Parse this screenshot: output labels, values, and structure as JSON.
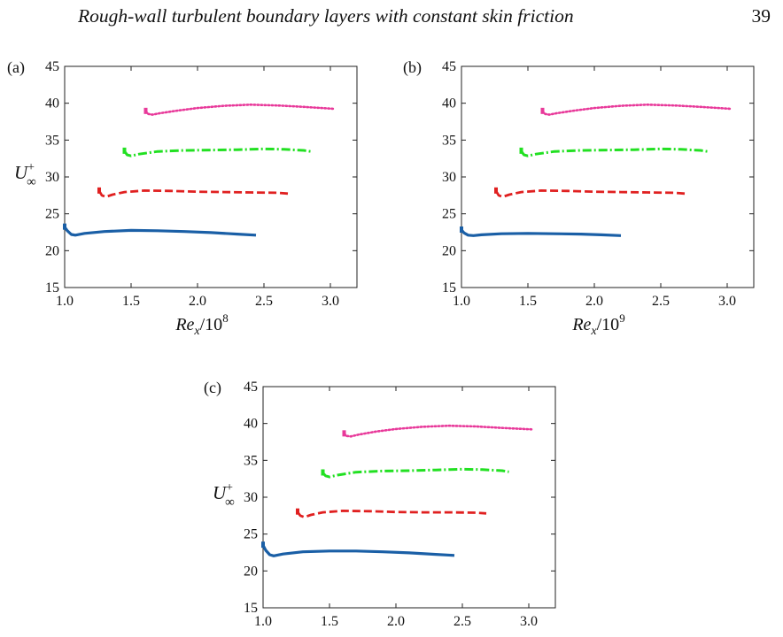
{
  "header": {
    "title": "Rough-wall turbulent boundary layers with constant skin friction",
    "page_number": "39"
  },
  "chart_data": [
    {
      "panel": "a",
      "panel_label": "(a)",
      "type": "line",
      "xlabel_main": "Re",
      "xlabel_sub": "x",
      "xlabel_div": "/10",
      "xlabel_exp": "8",
      "ylabel_main": "U",
      "ylabel_sup": "+",
      "ylabel_sub": "∞",
      "xlim": [
        1.0,
        3.2
      ],
      "ylim": [
        15,
        45
      ],
      "xticks": [
        1.0,
        1.5,
        2.0,
        2.5,
        3.0
      ],
      "xtick_labels": [
        "1.0",
        "1.5",
        "2.0",
        "2.5",
        "3.0"
      ],
      "yticks": [
        15,
        20,
        25,
        30,
        35,
        40,
        45
      ],
      "ytick_labels": [
        "15",
        "20",
        "25",
        "30",
        "35",
        "40",
        "45"
      ],
      "series": [
        {
          "style": "solid",
          "color": "#1a5fa6",
          "x": [
            1.0,
            1.02,
            1.05,
            1.08,
            1.15,
            1.3,
            1.5,
            1.7,
            1.9,
            2.1,
            2.3,
            2.44
          ],
          "y": [
            23.2,
            22.7,
            22.2,
            22.1,
            22.35,
            22.6,
            22.75,
            22.7,
            22.6,
            22.45,
            22.25,
            22.1
          ]
        },
        {
          "style": "dashed",
          "color": "#e02020",
          "x": [
            1.26,
            1.28,
            1.31,
            1.36,
            1.45,
            1.6,
            1.8,
            2.0,
            2.2,
            2.4,
            2.6,
            2.68
          ],
          "y": [
            28.1,
            27.5,
            27.3,
            27.6,
            27.95,
            28.15,
            28.1,
            28.0,
            27.95,
            27.9,
            27.85,
            27.75
          ]
        },
        {
          "style": "dashdot",
          "color": "#22e022",
          "x": [
            1.45,
            1.47,
            1.5,
            1.56,
            1.7,
            1.9,
            2.1,
            2.3,
            2.5,
            2.65,
            2.8,
            2.85
          ],
          "y": [
            33.5,
            33.0,
            32.85,
            33.1,
            33.45,
            33.6,
            33.65,
            33.7,
            33.8,
            33.75,
            33.6,
            33.45
          ]
        },
        {
          "style": "dotted",
          "color": "#e8399a",
          "x": [
            1.61,
            1.63,
            1.66,
            1.72,
            1.85,
            2.0,
            2.2,
            2.4,
            2.6,
            2.8,
            3.02
          ],
          "y": [
            38.9,
            38.55,
            38.45,
            38.65,
            39.0,
            39.35,
            39.65,
            39.8,
            39.7,
            39.5,
            39.25
          ]
        }
      ]
    },
    {
      "panel": "b",
      "panel_label": "(b)",
      "type": "line",
      "xlabel_main": "Re",
      "xlabel_sub": "x",
      "xlabel_div": "/10",
      "xlabel_exp": "9",
      "ylabel_main": "",
      "ylabel_sup": "",
      "ylabel_sub": "",
      "xlim": [
        1.0,
        3.2
      ],
      "ylim": [
        15,
        45
      ],
      "xticks": [
        1.0,
        1.5,
        2.0,
        2.5,
        3.0
      ],
      "xtick_labels": [
        "1.0",
        "1.5",
        "2.0",
        "2.5",
        "3.0"
      ],
      "yticks": [
        15,
        20,
        25,
        30,
        35,
        40,
        45
      ],
      "ytick_labels": [
        "15",
        "20",
        "25",
        "30",
        "35",
        "40",
        "45"
      ],
      "series": [
        {
          "style": "solid",
          "color": "#1a5fa6",
          "x": [
            1.0,
            1.02,
            1.05,
            1.09,
            1.15,
            1.3,
            1.5,
            1.7,
            1.9,
            2.05,
            2.2
          ],
          "y": [
            22.8,
            22.4,
            22.1,
            22.05,
            22.15,
            22.3,
            22.35,
            22.3,
            22.25,
            22.15,
            22.05
          ]
        },
        {
          "style": "dashed",
          "color": "#e02020",
          "x": [
            1.26,
            1.28,
            1.31,
            1.36,
            1.45,
            1.6,
            1.8,
            2.0,
            2.2,
            2.4,
            2.6,
            2.68
          ],
          "y": [
            28.1,
            27.5,
            27.3,
            27.6,
            27.95,
            28.15,
            28.1,
            28.0,
            27.95,
            27.9,
            27.85,
            27.75
          ]
        },
        {
          "style": "dashdot",
          "color": "#22e022",
          "x": [
            1.45,
            1.47,
            1.5,
            1.56,
            1.7,
            1.9,
            2.1,
            2.3,
            2.5,
            2.65,
            2.8,
            2.85
          ],
          "y": [
            33.5,
            33.0,
            32.85,
            33.1,
            33.45,
            33.6,
            33.65,
            33.7,
            33.8,
            33.75,
            33.6,
            33.45
          ]
        },
        {
          "style": "dotted",
          "color": "#e8399a",
          "x": [
            1.61,
            1.63,
            1.66,
            1.72,
            1.85,
            2.0,
            2.2,
            2.4,
            2.6,
            2.8,
            3.02
          ],
          "y": [
            38.9,
            38.55,
            38.45,
            38.65,
            39.0,
            39.35,
            39.65,
            39.8,
            39.7,
            39.5,
            39.25
          ]
        }
      ]
    },
    {
      "panel": "c",
      "panel_label": "(c)",
      "type": "line",
      "xlabel_main": "",
      "xlabel_sub": "",
      "xlabel_div": "",
      "xlabel_exp": "",
      "ylabel_main": "U",
      "ylabel_sup": "+",
      "ylabel_sub": "∞",
      "xlim": [
        1.0,
        3.2
      ],
      "ylim": [
        15,
        45
      ],
      "xticks": [
        1.0,
        1.5,
        2.0,
        2.5,
        3.0
      ],
      "xtick_labels": [
        "1.0",
        "1.5",
        "2.0",
        "2.5",
        "3.0"
      ],
      "yticks": [
        15,
        20,
        25,
        30,
        35,
        40,
        45
      ],
      "ytick_labels": [
        "15",
        "20",
        "25",
        "30",
        "35",
        "40",
        "45"
      ],
      "series": [
        {
          "style": "solid",
          "color": "#1a5fa6",
          "x": [
            1.0,
            1.02,
            1.05,
            1.08,
            1.15,
            1.3,
            1.5,
            1.7,
            1.9,
            2.1,
            2.3,
            2.44
          ],
          "y": [
            23.5,
            22.8,
            22.2,
            22.05,
            22.3,
            22.6,
            22.7,
            22.7,
            22.6,
            22.45,
            22.25,
            22.1
          ]
        },
        {
          "style": "dashed",
          "color": "#e02020",
          "x": [
            1.26,
            1.28,
            1.31,
            1.36,
            1.45,
            1.6,
            1.8,
            2.0,
            2.2,
            2.4,
            2.6,
            2.68
          ],
          "y": [
            28.0,
            27.5,
            27.3,
            27.6,
            27.95,
            28.15,
            28.1,
            28.0,
            27.95,
            27.95,
            27.9,
            27.8
          ]
        },
        {
          "style": "dashdot",
          "color": "#22e022",
          "x": [
            1.45,
            1.47,
            1.5,
            1.56,
            1.7,
            1.9,
            2.1,
            2.3,
            2.5,
            2.65,
            2.8,
            2.85
          ],
          "y": [
            33.3,
            32.9,
            32.75,
            33.0,
            33.4,
            33.55,
            33.6,
            33.7,
            33.8,
            33.75,
            33.6,
            33.45
          ]
        },
        {
          "style": "dotted",
          "color": "#e8399a",
          "x": [
            1.61,
            1.63,
            1.66,
            1.72,
            1.85,
            2.0,
            2.2,
            2.4,
            2.6,
            2.8,
            3.02
          ],
          "y": [
            38.6,
            38.3,
            38.25,
            38.5,
            38.9,
            39.25,
            39.55,
            39.7,
            39.6,
            39.4,
            39.2
          ]
        }
      ]
    }
  ]
}
